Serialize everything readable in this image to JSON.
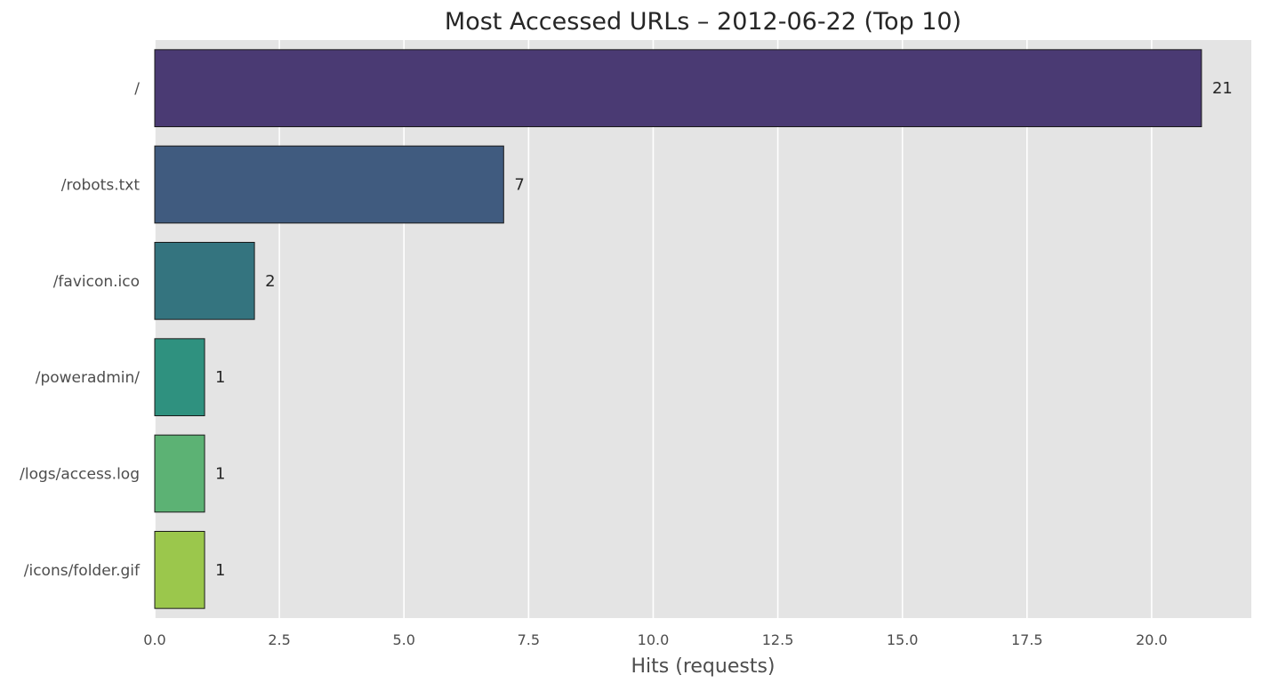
{
  "chart_data": {
    "type": "bar",
    "orientation": "horizontal",
    "title": "Most Accessed URLs – 2012-06-22 (Top 10)",
    "xlabel": "Hits (requests)",
    "ylabel": "",
    "categories": [
      "/",
      "/robots.txt",
      "/favicon.ico",
      "/poweradmin/",
      "/logs/access.log",
      "/icons/folder.gif"
    ],
    "values": [
      21,
      7,
      2,
      1,
      1,
      1
    ],
    "data_labels": [
      "21",
      "7",
      "2",
      "1",
      "1",
      "1"
    ],
    "colors": [
      "#4a3a73",
      "#405b7f",
      "#34747f",
      "#2f917f",
      "#5cb274",
      "#9bc74c"
    ],
    "xlim": [
      0,
      22
    ],
    "xticks": [
      0,
      2.5,
      5,
      7.5,
      10,
      12.5,
      15,
      17.5,
      20
    ],
    "xtick_labels": [
      "0.0",
      "2.5",
      "5.0",
      "7.5",
      "10.0",
      "12.5",
      "15.0",
      "17.5",
      "20.0"
    ],
    "grid": true,
    "grid_axis": "x",
    "background_color": "#e4e4e4",
    "grid_color": "#ffffff",
    "bar_edge_color": "#1a1a1a",
    "legend": "none"
  }
}
